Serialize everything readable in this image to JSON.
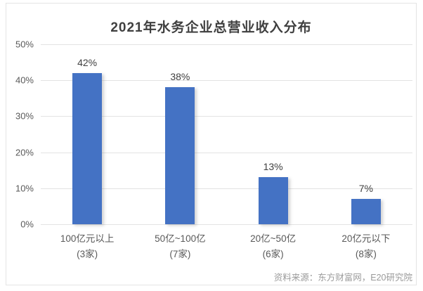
{
  "chart_data": {
    "type": "bar",
    "title": "2021年水务企业总营业收入分布",
    "categories": [
      "100亿元以上",
      "50亿~100亿",
      "20亿~50亿",
      "20亿元以下"
    ],
    "category_sublabels": [
      "(3家)",
      "(7家)",
      "(6家)",
      "(8家)"
    ],
    "values": [
      42,
      38,
      13,
      7
    ],
    "value_labels": [
      "42%",
      "38%",
      "13%",
      "7%"
    ],
    "ylabel": "",
    "xlabel": "",
    "ylim": [
      0,
      50
    ],
    "yticks": [
      0,
      10,
      20,
      30,
      40,
      50
    ],
    "ytick_labels": [
      "0%",
      "10%",
      "20%",
      "30%",
      "40%",
      "50%"
    ],
    "grid": "horizontal",
    "legend": "none",
    "bar_color": "#4472c4"
  },
  "source_note": "资料来源：东方财富网，E20研究院",
  "colors": {
    "bar": "#4472c4",
    "title_text": "#3f3f3f",
    "axis_text": "#595959",
    "value_text": "#404040",
    "gridline": "#e3e3e3",
    "frame_border": "#e4e4e4",
    "source_text": "#9a9a9a",
    "background": "#ffffff"
  }
}
